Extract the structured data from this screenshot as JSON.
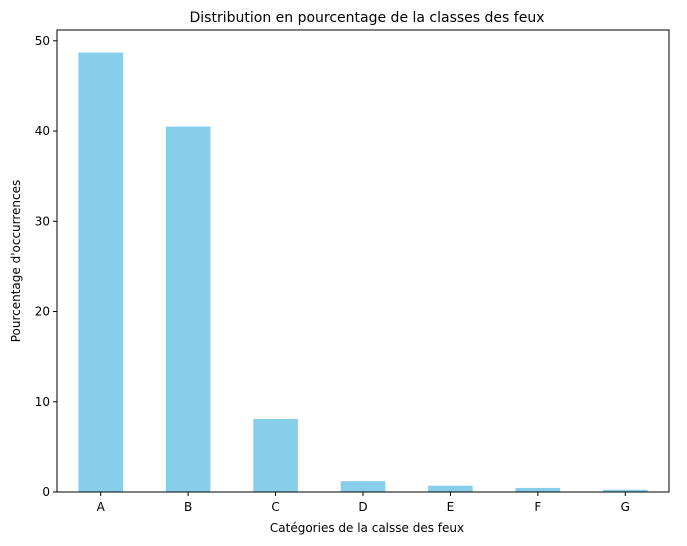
{
  "chart_data": {
    "type": "bar",
    "title": "Distribution en pourcentage de la classes des feux",
    "xlabel": "Catégories de la calsse des feux",
    "ylabel": "Pourcentage d'occurrences",
    "categories": [
      "A",
      "B",
      "C",
      "D",
      "E",
      "F",
      "G"
    ],
    "values": [
      48.7,
      40.5,
      8.1,
      1.2,
      0.7,
      0.45,
      0.25
    ],
    "ylim": [
      0,
      51.2
    ],
    "yticks": [
      0,
      10,
      20,
      30,
      40,
      50
    ],
    "ytick_labels": [
      "0",
      "10",
      "20",
      "30",
      "40",
      "50"
    ],
    "grid": false,
    "bar_color": "#87ceeb"
  }
}
